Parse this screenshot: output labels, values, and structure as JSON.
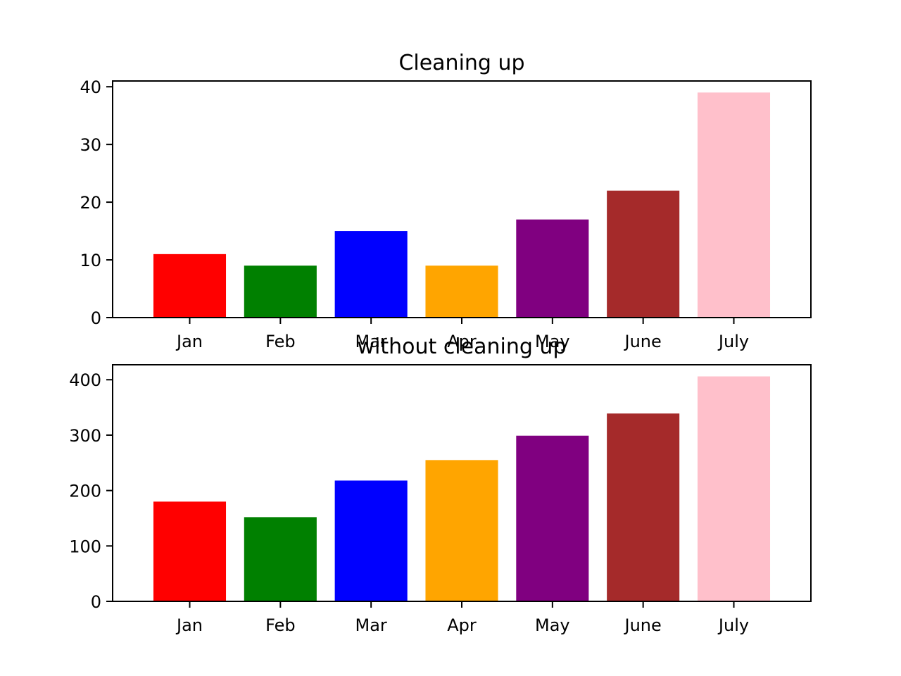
{
  "chart_data": [
    {
      "type": "bar",
      "title": "Cleaning up",
      "xlabel": "",
      "ylabel": "",
      "categories": [
        "Jan",
        "Feb",
        "Mar",
        "Apr",
        "May",
        "June",
        "July"
      ],
      "values": [
        11,
        9,
        15,
        9,
        17,
        22,
        39
      ],
      "colors": [
        "#ff0000",
        "#008000",
        "#0000ff",
        "#ffa500",
        "#800080",
        "#a52a2a",
        "#ffc0cb"
      ],
      "ylim": [
        0,
        41
      ],
      "yticks": [
        0,
        10,
        20,
        30,
        40
      ],
      "grid": false
    },
    {
      "type": "bar",
      "title": "without cleaning up",
      "xlabel": "",
      "ylabel": "",
      "categories": [
        "Jan",
        "Feb",
        "Mar",
        "Apr",
        "May",
        "June",
        "July"
      ],
      "values": [
        180,
        152,
        218,
        255,
        299,
        339,
        406
      ],
      "colors": [
        "#ff0000",
        "#008000",
        "#0000ff",
        "#ffa500",
        "#800080",
        "#a52a2a",
        "#ffc0cb"
      ],
      "ylim": [
        0,
        427
      ],
      "yticks": [
        0,
        100,
        200,
        300,
        400
      ],
      "grid": false
    }
  ]
}
